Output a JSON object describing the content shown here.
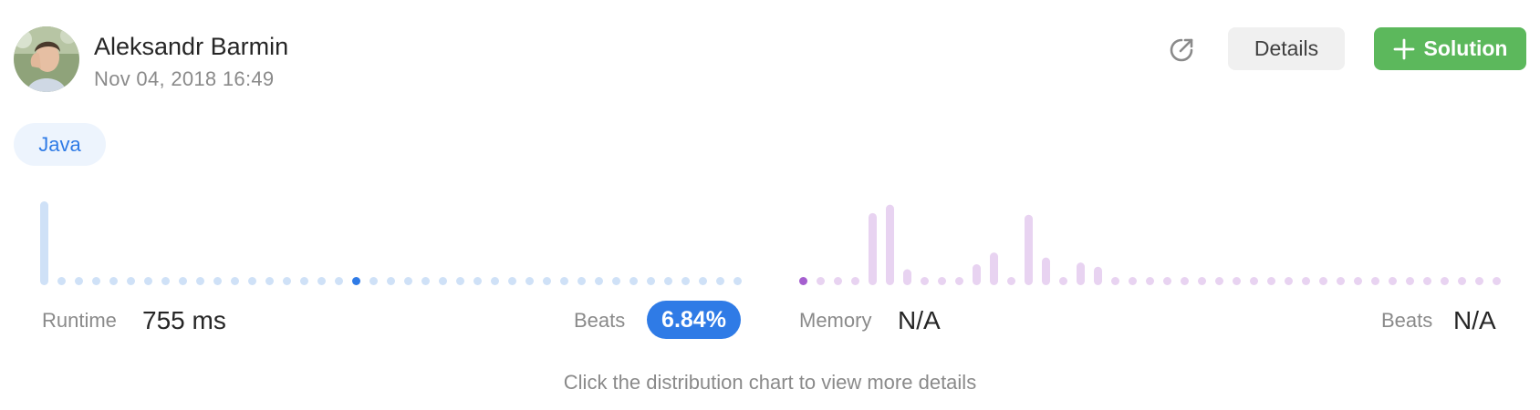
{
  "author": {
    "name": "Aleksandr Barmin",
    "date": "Nov 04, 2018 16:49"
  },
  "toolbar": {
    "share_icon": "share-icon",
    "details_label": "Details",
    "solution_label": "Solution",
    "solution_icon": "plus-icon"
  },
  "language_tag": "Java",
  "runtime": {
    "label": "Runtime",
    "value": "755 ms",
    "beats_label": "Beats",
    "beats_value": "6.84%",
    "color_bar": "#cfe1f7",
    "color_highlight": "#2f7be6",
    "distribution": [
      1.0,
      0.06,
      0.06,
      0.06,
      0.06,
      0.06,
      0.06,
      0.06,
      0.06,
      0.06,
      0.06,
      0.06,
      0.06,
      0.06,
      0.06,
      0.06,
      0.06,
      0.06,
      0.06,
      0.06,
      0.06,
      0.06,
      0.06,
      0.06,
      0.06,
      0.06,
      0.06,
      0.06,
      0.06,
      0.06,
      0.06,
      0.06,
      0.06,
      0.06,
      0.06,
      0.06,
      0.06,
      0.06,
      0.06,
      0.06,
      0.06
    ],
    "highlight_index": 18
  },
  "memory": {
    "label": "Memory",
    "value": "N/A",
    "beats_label": "Beats",
    "beats_value": "N/A",
    "color_bar": "#e8d3f1",
    "color_highlight": "#a55fcf",
    "distribution": [
      0.06,
      0.06,
      0.06,
      0.06,
      0.86,
      0.96,
      0.19,
      0.06,
      0.06,
      0.06,
      0.25,
      0.39,
      0.06,
      0.84,
      0.33,
      0.06,
      0.27,
      0.22,
      0.06,
      0.06,
      0.06,
      0.06,
      0.06,
      0.06,
      0.06,
      0.06,
      0.06,
      0.06,
      0.06,
      0.06,
      0.06,
      0.06,
      0.06,
      0.06,
      0.06,
      0.06,
      0.06,
      0.06,
      0.06,
      0.06,
      0.06
    ],
    "highlight_index": 0
  },
  "hint": "Click the distribution chart to view more details"
}
